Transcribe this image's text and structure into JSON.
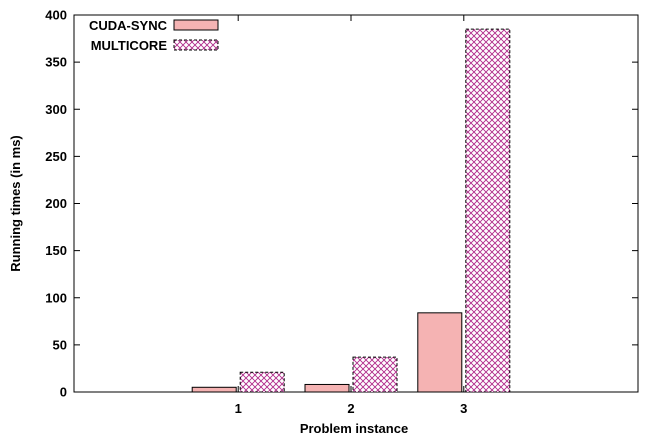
{
  "chart_data": {
    "type": "bar",
    "categories": [
      "1",
      "2",
      "3"
    ],
    "series": [
      {
        "name": "CUDA-SYNC",
        "values": [
          5,
          8,
          84
        ],
        "color": "#f5b3b3",
        "pattern": "solid"
      },
      {
        "name": "MULTICORE",
        "values": [
          21,
          37,
          385
        ],
        "color": "#b02a8a",
        "pattern": "crosshatch"
      }
    ],
    "xlabel": "Problem instance",
    "ylabel": "Running times (in ms)",
    "ylim": [
      0,
      400
    ],
    "yticks": [
      0,
      50,
      100,
      150,
      200,
      250,
      300,
      350,
      400
    ],
    "grid": false,
    "legend_position": "top-left"
  }
}
